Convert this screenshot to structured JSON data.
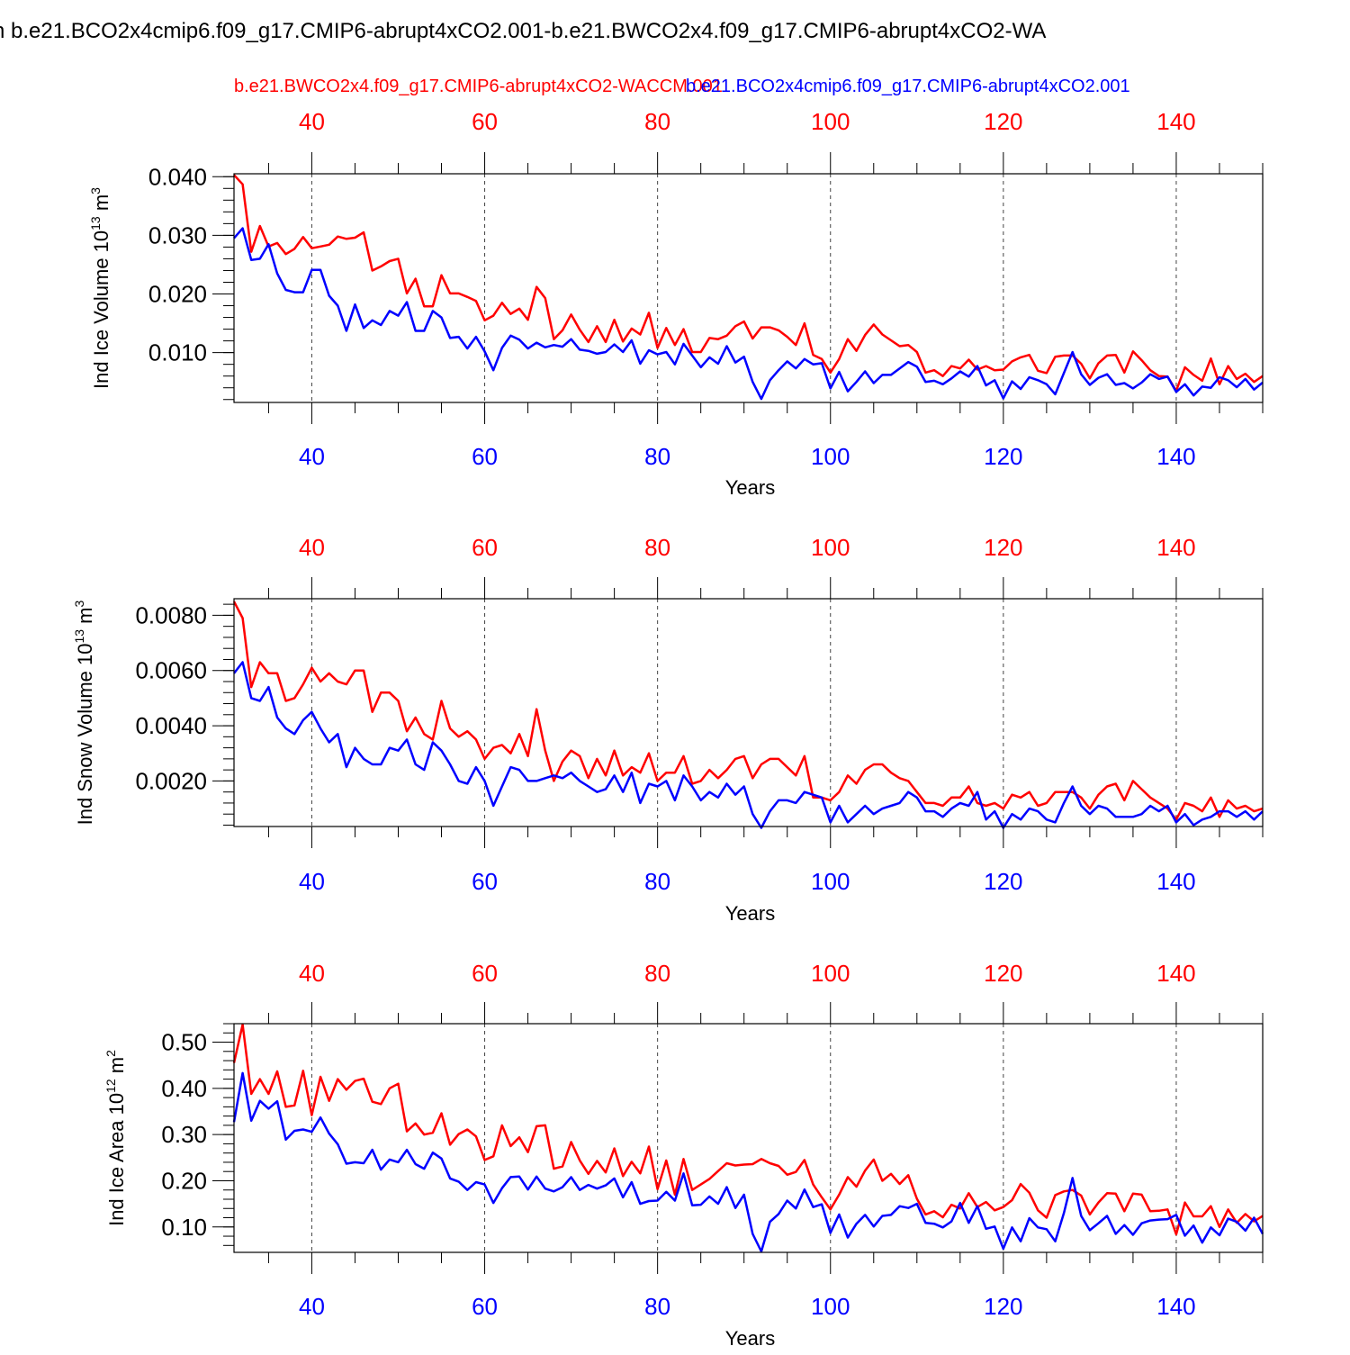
{
  "figure_title": "n b.e21.BCO2x4cmip6.f09_g17.CMIP6-abrupt4xCO2.001-b.e21.BWCO2x4.f09_g17.CMIP6-abrupt4xCO2-WA",
  "legend": {
    "red_label": "b.e21.BWCO2x4.f09_g17.CMIP6-abrupt4xCO2-WACCM.001",
    "blue_label": "b.e21.BCO2x4cmip6.f09_g17.CMIP6-abrupt4xCO2.001"
  },
  "colors": {
    "red": "#ff0000",
    "blue": "#0000ff",
    "axis": "#000000",
    "grid": "#444444"
  },
  "chart_data": [
    {
      "type": "line",
      "ylabel_main": "Ind Ice Volume 10",
      "ylabel_exp": "13",
      "ylabel_unit": " m",
      "ylabel_unit_exp": "3",
      "xlabel": "Years",
      "xlim": [
        31,
        150
      ],
      "ylim": [
        0.0015,
        0.0405
      ],
      "yticks": [
        0.01,
        0.02,
        0.03,
        0.04
      ],
      "ytick_labels": [
        "0.010",
        "0.020",
        "0.030",
        "0.040"
      ],
      "xticks": [
        40,
        60,
        80,
        100,
        120,
        140
      ],
      "xtick_labels": [
        "40",
        "60",
        "80",
        "100",
        "120",
        "140"
      ],
      "series": [
        {
          "name": "b.e21.BWCO2x4.f09_g17.CMIP6-abrupt4xCO2-WACCM.001",
          "color": "red",
          "values": [
            0.0403,
            0.0387,
            0.0272,
            0.0316,
            0.0281,
            0.0287,
            0.0268,
            0.0277,
            0.0297,
            0.0278,
            0.0281,
            0.0284,
            0.0298,
            0.0294,
            0.0296,
            0.0305,
            0.024,
            0.0247,
            0.0256,
            0.026,
            0.0201,
            0.0226,
            0.0179,
            0.0179,
            0.0232,
            0.0201,
            0.0201,
            0.0195,
            0.0188,
            0.0155,
            0.0163,
            0.0185,
            0.0166,
            0.0175,
            0.0156,
            0.0212,
            0.0193,
            0.0123,
            0.0138,
            0.0165,
            0.0139,
            0.0118,
            0.0145,
            0.0118,
            0.0156,
            0.0119,
            0.0141,
            0.0131,
            0.0168,
            0.0108,
            0.0142,
            0.0113,
            0.014,
            0.0101,
            0.0101,
            0.0125,
            0.0123,
            0.0129,
            0.0145,
            0.0153,
            0.0124,
            0.0143,
            0.0143,
            0.0138,
            0.0127,
            0.0113,
            0.015,
            0.0096,
            0.0089,
            0.0066,
            0.0089,
            0.0123,
            0.0103,
            0.013,
            0.0148,
            0.0131,
            0.0121,
            0.0111,
            0.0113,
            0.0101,
            0.0066,
            0.007,
            0.006,
            0.0077,
            0.0073,
            0.0088,
            0.0071,
            0.0077,
            0.007,
            0.0071,
            0.0085,
            0.0092,
            0.0096,
            0.0069,
            0.0065,
            0.0093,
            0.0095,
            0.0095,
            0.0081,
            0.0056,
            0.0082,
            0.0095,
            0.0096,
            0.0066,
            0.0102,
            0.0087,
            0.007,
            0.006,
            0.0059,
            0.0035,
            0.0075,
            0.0062,
            0.0052,
            0.009,
            0.0046,
            0.0077,
            0.0055,
            0.0064,
            0.005,
            0.006
          ]
        },
        {
          "name": "b.e21.BCO2x4cmip6.f09_g17.CMIP6-abrupt4xCO2.001",
          "color": "blue",
          "values": [
            0.0295,
            0.0312,
            0.0258,
            0.026,
            0.0285,
            0.0235,
            0.0207,
            0.0203,
            0.0203,
            0.0241,
            0.0241,
            0.0197,
            0.018,
            0.0137,
            0.0182,
            0.0142,
            0.0155,
            0.0147,
            0.0171,
            0.0163,
            0.0186,
            0.0137,
            0.0137,
            0.0171,
            0.016,
            0.0125,
            0.0127,
            0.0107,
            0.0127,
            0.0102,
            0.007,
            0.0108,
            0.0129,
            0.0122,
            0.0107,
            0.0117,
            0.0109,
            0.0113,
            0.011,
            0.0123,
            0.0105,
            0.0103,
            0.0098,
            0.0101,
            0.0114,
            0.0101,
            0.0121,
            0.0081,
            0.0104,
            0.0097,
            0.0101,
            0.008,
            0.0115,
            0.0095,
            0.0075,
            0.0092,
            0.0081,
            0.0111,
            0.0083,
            0.0093,
            0.005,
            0.0021,
            0.0053,
            0.007,
            0.0085,
            0.0073,
            0.0089,
            0.008,
            0.0082,
            0.0039,
            0.0067,
            0.0034,
            0.005,
            0.0068,
            0.0048,
            0.0062,
            0.0062,
            0.0073,
            0.0084,
            0.0076,
            0.005,
            0.0052,
            0.0046,
            0.0056,
            0.0068,
            0.0059,
            0.0077,
            0.0044,
            0.0053,
            0.0022,
            0.0051,
            0.0038,
            0.0058,
            0.0053,
            0.0046,
            0.0029,
            0.0065,
            0.0101,
            0.0063,
            0.0045,
            0.0057,
            0.0063,
            0.0045,
            0.0048,
            0.0039,
            0.0049,
            0.0063,
            0.0055,
            0.0059,
            0.0033,
            0.0046,
            0.0027,
            0.0042,
            0.004,
            0.0058,
            0.0053,
            0.0041,
            0.0055,
            0.0037,
            0.0049
          ]
        }
      ]
    },
    {
      "type": "line",
      "ylabel_main": "Ind Snow Volume 10",
      "ylabel_exp": "13",
      "ylabel_unit": " m",
      "ylabel_unit_exp": "3",
      "xlabel": "Years",
      "xlim": [
        31,
        150
      ],
      "ylim": [
        0.00035,
        0.0086
      ],
      "yticks": [
        0.002,
        0.004,
        0.006,
        0.008
      ],
      "ytick_labels": [
        "0.0020",
        "0.0040",
        "0.0060",
        "0.0080"
      ],
      "xticks": [
        40,
        60,
        80,
        100,
        120,
        140
      ],
      "xtick_labels": [
        "40",
        "60",
        "80",
        "100",
        "120",
        "140"
      ],
      "series": [
        {
          "name": "b.e21.BWCO2x4.f09_g17.CMIP6-abrupt4xCO2-WACCM.001",
          "color": "red",
          "values": [
            0.0085,
            0.0079,
            0.0054,
            0.0063,
            0.0059,
            0.0059,
            0.0049,
            0.005,
            0.0055,
            0.0061,
            0.0056,
            0.0059,
            0.0056,
            0.0055,
            0.006,
            0.006,
            0.0045,
            0.0052,
            0.0052,
            0.0049,
            0.0038,
            0.0043,
            0.0037,
            0.0035,
            0.0049,
            0.0039,
            0.0036,
            0.0038,
            0.0035,
            0.0028,
            0.0032,
            0.0033,
            0.003,
            0.0037,
            0.0029,
            0.0046,
            0.0031,
            0.002,
            0.0027,
            0.0031,
            0.0029,
            0.0021,
            0.0028,
            0.0022,
            0.0031,
            0.0022,
            0.0025,
            0.0023,
            0.003,
            0.002,
            0.0023,
            0.0023,
            0.0029,
            0.0019,
            0.002,
            0.0024,
            0.0021,
            0.0024,
            0.0028,
            0.0029,
            0.0021,
            0.0026,
            0.0028,
            0.0028,
            0.0025,
            0.0022,
            0.0029,
            0.0014,
            0.0014,
            0.0013,
            0.0016,
            0.0022,
            0.0019,
            0.0024,
            0.0026,
            0.0026,
            0.0023,
            0.0021,
            0.002,
            0.0016,
            0.0012,
            0.0012,
            0.0011,
            0.0014,
            0.0014,
            0.0018,
            0.0012,
            0.0011,
            0.0012,
            0.001,
            0.0015,
            0.0014,
            0.0016,
            0.0011,
            0.0012,
            0.0016,
            0.0016,
            0.0016,
            0.0014,
            0.001,
            0.0015,
            0.0018,
            0.0019,
            0.0013,
            0.002,
            0.0017,
            0.0014,
            0.0012,
            0.001,
            0.0006,
            0.0012,
            0.0011,
            0.0009,
            0.0014,
            0.0007,
            0.0013,
            0.001,
            0.0011,
            0.0009,
            0.001
          ]
        },
        {
          "name": "b.e21.BCO2x4cmip6.f09_g17.CMIP6-abrupt4xCO2.001",
          "color": "blue",
          "values": [
            0.0059,
            0.0063,
            0.005,
            0.0049,
            0.0054,
            0.0043,
            0.0039,
            0.0037,
            0.0042,
            0.0045,
            0.0039,
            0.0034,
            0.0037,
            0.0025,
            0.0032,
            0.0028,
            0.0026,
            0.0026,
            0.0032,
            0.0031,
            0.0035,
            0.0026,
            0.0024,
            0.0034,
            0.0031,
            0.0026,
            0.002,
            0.0019,
            0.0025,
            0.002,
            0.0011,
            0.0018,
            0.0025,
            0.0024,
            0.002,
            0.002,
            0.0021,
            0.0022,
            0.0021,
            0.0023,
            0.002,
            0.0018,
            0.0016,
            0.0017,
            0.0022,
            0.0016,
            0.0023,
            0.0012,
            0.0019,
            0.0018,
            0.002,
            0.0013,
            0.0022,
            0.0018,
            0.0013,
            0.0016,
            0.0014,
            0.0019,
            0.0015,
            0.0018,
            0.0008,
            0.0003,
            0.0009,
            0.0013,
            0.0013,
            0.0012,
            0.0016,
            0.0015,
            0.0014,
            0.0005,
            0.0011,
            0.0005,
            0.0008,
            0.0011,
            0.0008,
            0.001,
            0.0011,
            0.0012,
            0.0016,
            0.0014,
            0.0009,
            0.0009,
            0.0007,
            0.001,
            0.0012,
            0.0011,
            0.0016,
            0.0006,
            0.0009,
            0.0003,
            0.0008,
            0.0006,
            0.001,
            0.0009,
            0.0006,
            0.0005,
            0.0012,
            0.0018,
            0.0011,
            0.0008,
            0.0011,
            0.001,
            0.0007,
            0.0007,
            0.0007,
            0.0008,
            0.0011,
            0.0009,
            0.0011,
            0.0005,
            0.0008,
            0.0004,
            0.0006,
            0.0007,
            0.0009,
            0.0009,
            0.0007,
            0.0009,
            0.0006,
            0.0009
          ]
        }
      ]
    },
    {
      "type": "line",
      "ylabel_main": "Ind Ice Area 10",
      "ylabel_exp": "12",
      "ylabel_unit": " m",
      "ylabel_unit_exp": "2",
      "xlabel": "Years",
      "xlim": [
        31,
        150
      ],
      "ylim": [
        0.045,
        0.54
      ],
      "yticks": [
        0.1,
        0.2,
        0.3,
        0.4,
        0.5
      ],
      "ytick_labels": [
        "0.10",
        "0.20",
        "0.30",
        "0.40",
        "0.50"
      ],
      "xticks": [
        40,
        60,
        80,
        100,
        120,
        140
      ],
      "xtick_labels": [
        "40",
        "60",
        "80",
        "100",
        "120",
        "140"
      ],
      "series": [
        {
          "name": "b.e21.BWCO2x4.f09_g17.CMIP6-abrupt4xCO2-WACCM.001",
          "color": "red",
          "values": [
            0.455,
            0.538,
            0.388,
            0.42,
            0.388,
            0.437,
            0.36,
            0.363,
            0.438,
            0.342,
            0.425,
            0.373,
            0.42,
            0.397,
            0.416,
            0.421,
            0.371,
            0.366,
            0.4,
            0.41,
            0.307,
            0.324,
            0.3,
            0.304,
            0.346,
            0.278,
            0.301,
            0.311,
            0.296,
            0.245,
            0.253,
            0.32,
            0.275,
            0.294,
            0.262,
            0.318,
            0.32,
            0.226,
            0.231,
            0.284,
            0.244,
            0.215,
            0.243,
            0.218,
            0.27,
            0.21,
            0.241,
            0.216,
            0.274,
            0.182,
            0.244,
            0.17,
            0.247,
            0.18,
            0.192,
            0.204,
            0.221,
            0.238,
            0.233,
            0.235,
            0.236,
            0.247,
            0.238,
            0.232,
            0.213,
            0.219,
            0.245,
            0.192,
            0.164,
            0.138,
            0.17,
            0.208,
            0.187,
            0.222,
            0.246,
            0.2,
            0.215,
            0.193,
            0.212,
            0.161,
            0.127,
            0.134,
            0.121,
            0.148,
            0.14,
            0.173,
            0.143,
            0.154,
            0.136,
            0.143,
            0.158,
            0.193,
            0.174,
            0.136,
            0.12,
            0.169,
            0.177,
            0.18,
            0.168,
            0.127,
            0.153,
            0.173,
            0.172,
            0.134,
            0.172,
            0.17,
            0.134,
            0.135,
            0.138,
            0.084,
            0.153,
            0.123,
            0.123,
            0.145,
            0.1,
            0.138,
            0.109,
            0.128,
            0.112,
            0.124
          ]
        },
        {
          "name": "b.e21.BCO2x4cmip6.f09_g17.CMIP6-abrupt4xCO2.001",
          "color": "blue",
          "values": [
            0.327,
            0.433,
            0.33,
            0.373,
            0.356,
            0.372,
            0.289,
            0.308,
            0.311,
            0.306,
            0.337,
            0.302,
            0.279,
            0.237,
            0.24,
            0.238,
            0.267,
            0.224,
            0.246,
            0.24,
            0.267,
            0.236,
            0.226,
            0.261,
            0.248,
            0.205,
            0.198,
            0.18,
            0.197,
            0.192,
            0.152,
            0.184,
            0.208,
            0.209,
            0.181,
            0.209,
            0.183,
            0.177,
            0.186,
            0.208,
            0.18,
            0.191,
            0.183,
            0.19,
            0.205,
            0.164,
            0.197,
            0.15,
            0.156,
            0.157,
            0.176,
            0.157,
            0.216,
            0.147,
            0.148,
            0.166,
            0.15,
            0.186,
            0.141,
            0.17,
            0.085,
            0.047,
            0.111,
            0.128,
            0.157,
            0.14,
            0.181,
            0.143,
            0.149,
            0.087,
            0.127,
            0.077,
            0.107,
            0.126,
            0.101,
            0.124,
            0.126,
            0.145,
            0.141,
            0.15,
            0.109,
            0.107,
            0.099,
            0.112,
            0.152,
            0.109,
            0.145,
            0.096,
            0.101,
            0.053,
            0.099,
            0.069,
            0.119,
            0.099,
            0.095,
            0.069,
            0.13,
            0.206,
            0.124,
            0.093,
            0.108,
            0.124,
            0.085,
            0.104,
            0.083,
            0.108,
            0.114,
            0.116,
            0.117,
            0.126,
            0.081,
            0.103,
            0.066,
            0.099,
            0.082,
            0.118,
            0.111,
            0.092,
            0.12,
            0.085
          ]
        }
      ]
    }
  ]
}
